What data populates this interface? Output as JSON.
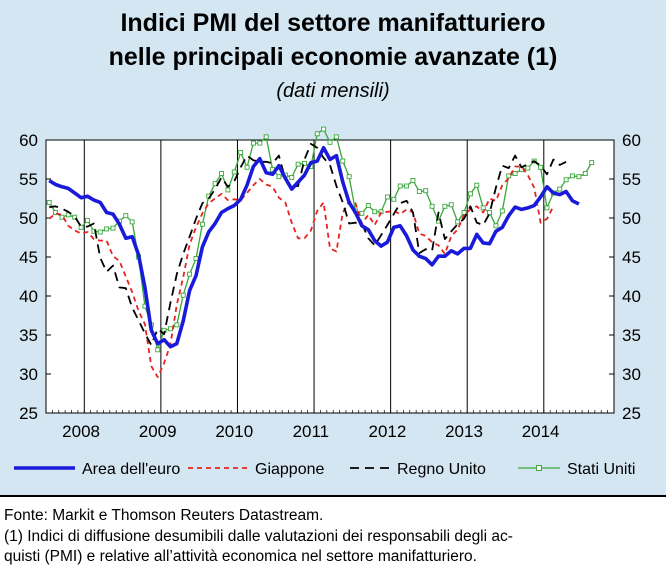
{
  "header": {
    "title_line1": "Indici PMI del settore manifatturiero",
    "title_line2": "nelle principali economie avanzate (1)",
    "subtitle": "(dati mensili)"
  },
  "footer": {
    "source": "Fonte: Markit e Thomson Reuters Datastream.",
    "note_line1": "(1) Indici di diffusione desumibili dalle valutazioni dei responsabili degli ac-",
    "note_line2": "quisti (PMI) e relative all’attività economica nel settore manifatturiero."
  },
  "colors": {
    "panel": "#d3e6f1",
    "euro": "#1a1adb",
    "japan": "#e8231f",
    "uk": "#000000",
    "us": "#3aa83a"
  },
  "chart_data": {
    "type": "line",
    "x_start": "2007-07",
    "frequency": "monthly",
    "year_labels": [
      "2008",
      "2009",
      "2010",
      "2011",
      "2012",
      "2013",
      "2014"
    ],
    "ylim": [
      25,
      60
    ],
    "yticks": [
      25,
      30,
      35,
      40,
      45,
      50,
      55,
      60
    ],
    "y_axis_both_sides": true,
    "legend_position": "bottom",
    "series": [
      {
        "name": "Area dell'euro",
        "key": "euro",
        "style": "solid-thick",
        "values": [
          54.8,
          54.3,
          54.0,
          53.8,
          53.2,
          52.6,
          52.8,
          52.3,
          52.0,
          50.7,
          50.5,
          49.2,
          47.4,
          47.6,
          45.3,
          41.1,
          35.6,
          33.9,
          34.4,
          33.5,
          33.9,
          36.8,
          40.7,
          42.6,
          46.3,
          48.2,
          49.3,
          50.7,
          51.2,
          51.6,
          52.4,
          54.2,
          56.6,
          57.6,
          55.8,
          55.6,
          56.7,
          55.1,
          53.7,
          54.6,
          55.5,
          57.1,
          57.3,
          59.0,
          57.5,
          58.0,
          54.6,
          52.0,
          50.7,
          49.0,
          48.5,
          47.1,
          46.4,
          46.9,
          48.8,
          49.0,
          47.7,
          45.9,
          45.1,
          44.8,
          44.0,
          45.1,
          45.1,
          45.8,
          45.4,
          46.1,
          46.1,
          47.9,
          46.8,
          46.7,
          48.3,
          48.8,
          50.3,
          51.4,
          51.1,
          51.3,
          51.6,
          52.7,
          54.0,
          53.2,
          53.0,
          53.4,
          52.2,
          51.8
        ]
      },
      {
        "name": "Giappone",
        "key": "japan",
        "style": "dashed",
        "values": [
          49.9,
          50.6,
          50.4,
          49.0,
          48.4,
          48.0,
          48.2,
          47.3,
          47.1,
          47.1,
          45.1,
          44.5,
          42.5,
          40.5,
          38.1,
          36.4,
          31.0,
          29.6,
          31.4,
          33.8,
          38.9,
          42.4,
          46.6,
          48.8,
          50.6,
          51.9,
          52.5,
          53.1,
          52.3,
          52.4,
          52.3,
          53.2,
          54.2,
          55.0,
          54.3,
          54.0,
          52.6,
          52.0,
          49.4,
          47.4,
          47.4,
          48.4,
          50.9,
          52.0,
          46.1,
          45.7,
          50.7,
          52.1,
          51.9,
          49.3,
          50.4,
          49.1,
          50.7,
          50.8,
          50.9,
          50.5,
          51.1,
          50.7,
          48.0,
          47.7,
          46.9,
          46.5,
          45.4,
          47.7,
          48.5,
          50.4,
          51.1,
          51.5,
          50.7,
          52.5,
          52.2,
          54.2,
          55.1,
          56.6,
          56.6,
          55.5,
          53.9,
          49.4,
          49.9,
          51.5
        ]
      },
      {
        "name": "Regno Unito",
        "key": "uk",
        "style": "long-dash",
        "values": [
          51.4,
          51.5,
          51.2,
          50.8,
          50.2,
          48.9,
          48.9,
          49.3,
          44.9,
          43.1,
          43.9,
          41.1,
          41.0,
          38.5,
          36.9,
          35.2,
          33.7,
          35.8,
          35.1,
          39.1,
          42.8,
          45.4,
          47.6,
          49.9,
          51.9,
          52.5,
          53.7,
          55.2,
          54.0,
          54.7,
          56.5,
          58.0,
          57.4,
          57.2,
          57.2,
          57.0,
          58.0,
          55.0,
          54.0,
          54.1,
          57.5,
          59.5,
          59.0,
          57.7,
          56.8,
          54.1,
          52.0,
          49.3,
          49.4,
          49.3,
          47.4,
          46.5,
          47.8,
          49.1,
          50.5,
          51.9,
          52.2,
          50.7,
          45.5,
          46.0,
          45.8,
          50.7,
          47.3,
          48.3,
          49.2,
          49.9,
          51.5,
          49.4,
          49.1,
          50.6,
          53.9,
          56.7,
          56.4,
          58.0,
          56.5,
          56.9,
          57.3,
          56.7,
          55.6,
          57.5,
          56.8,
          57.2
        ]
      },
      {
        "name": "Stati Uniti",
        "key": "us",
        "style": "solid-square-markers",
        "values": [
          52.0,
          50.7,
          50.1,
          50.4,
          50.1,
          48.8,
          49.7,
          48.3,
          48.2,
          48.6,
          48.7,
          49.6,
          50.3,
          49.5,
          45.0,
          38.7,
          36.3,
          33.1,
          35.6,
          35.8,
          36.3,
          40.1,
          42.8,
          44.8,
          49.2,
          52.8,
          54.4,
          55.7,
          53.6,
          55.9,
          58.4,
          56.5,
          59.6,
          59.6,
          60.4,
          56.2,
          55.3,
          55.5,
          55.2,
          56.9,
          57.0,
          56.6,
          60.8,
          61.4,
          59.7,
          60.4,
          57.3,
          55.3,
          50.9,
          50.6,
          51.6,
          50.8,
          50.8,
          52.7,
          52.4,
          54.1,
          54.1,
          54.8,
          53.4,
          53.5,
          51.5,
          49.6,
          51.5,
          51.7,
          49.5,
          50.7,
          53.1,
          54.2,
          51.3,
          50.7,
          49.0,
          50.9,
          55.4,
          55.7,
          56.2,
          56.4,
          57.3,
          56.5,
          51.3,
          53.2,
          53.7,
          54.9,
          55.4,
          55.3,
          55.7,
          57.1
        ]
      }
    ]
  }
}
